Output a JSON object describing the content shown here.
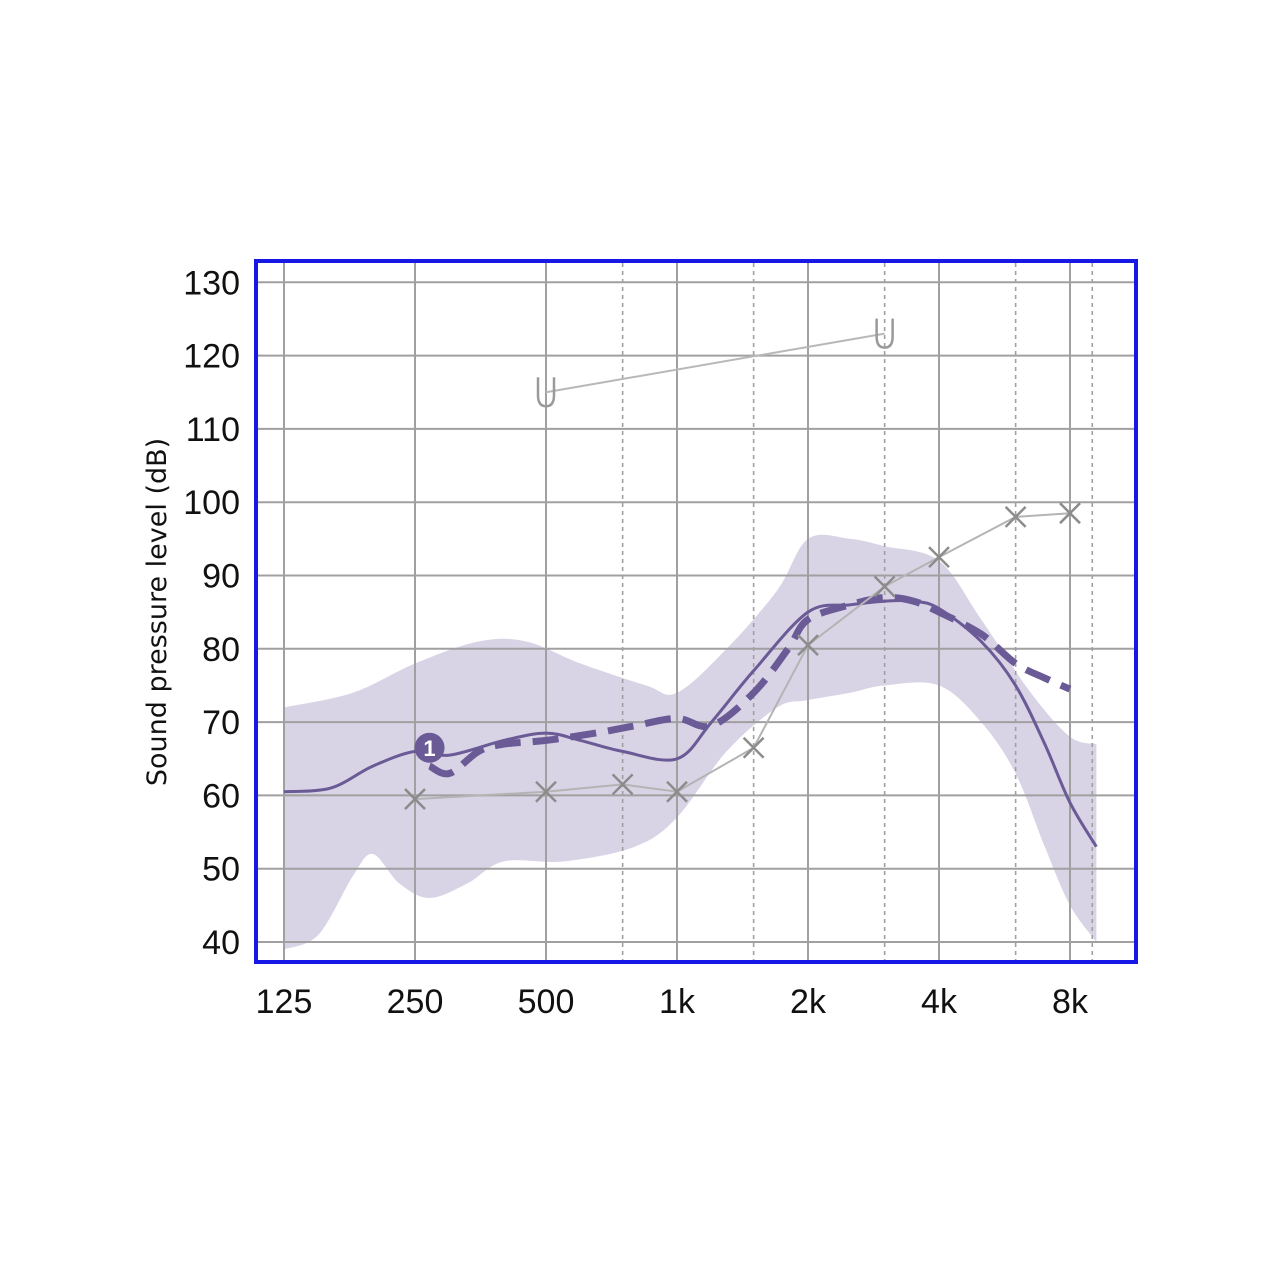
{
  "chart_data": {
    "type": "line",
    "title": "",
    "ylabel": "Sound pressure level (dB)",
    "xlabel": "",
    "x_scale": "log2",
    "xlim": [
      125,
      9600
    ],
    "ylim": [
      37,
      132
    ],
    "grid": true,
    "x_ticks": [
      {
        "value": 125,
        "label": "125"
      },
      {
        "value": 250,
        "label": "250"
      },
      {
        "value": 500,
        "label": "500"
      },
      {
        "value": 1000,
        "label": "1k"
      },
      {
        "value": 2000,
        "label": "2k"
      },
      {
        "value": 4000,
        "label": "4k"
      },
      {
        "value": 8000,
        "label": "8k"
      }
    ],
    "x_minor_ticks": [
      750,
      1500,
      3000,
      6000,
      9000
    ],
    "y_ticks": [
      40,
      50,
      60,
      70,
      80,
      90,
      100,
      110,
      120,
      130
    ],
    "colors": {
      "frame": "#1818e6",
      "grid": "#a0a0a0",
      "band": "#d9d3e6",
      "target": "#6a5a96",
      "measured": "#6a5a96",
      "thresholds": "#8c8c8c",
      "ucl": "#9a9a9a"
    },
    "band": {
      "upper": [
        [
          125,
          72
        ],
        [
          180,
          74
        ],
        [
          250,
          78
        ],
        [
          350,
          81
        ],
        [
          450,
          81
        ],
        [
          600,
          78
        ],
        [
          850,
          75
        ],
        [
          1000,
          74
        ],
        [
          1300,
          80
        ],
        [
          1700,
          88
        ],
        [
          2000,
          95
        ],
        [
          2500,
          95
        ],
        [
          3000,
          94
        ],
        [
          4000,
          92
        ],
        [
          5000,
          84
        ],
        [
          6500,
          74
        ],
        [
          8000,
          68
        ],
        [
          9200,
          67
        ]
      ],
      "lower": [
        [
          125,
          39
        ],
        [
          150,
          41
        ],
        [
          180,
          49
        ],
        [
          200,
          52
        ],
        [
          230,
          48
        ],
        [
          270,
          46
        ],
        [
          330,
          48
        ],
        [
          400,
          51
        ],
        [
          550,
          51
        ],
        [
          800,
          53
        ],
        [
          1000,
          57
        ],
        [
          1300,
          66
        ],
        [
          1700,
          72
        ],
        [
          2000,
          73
        ],
        [
          2500,
          74
        ],
        [
          3000,
          75
        ],
        [
          4000,
          75
        ],
        [
          5000,
          70
        ],
        [
          6000,
          63
        ],
        [
          7000,
          53
        ],
        [
          8000,
          45
        ],
        [
          9200,
          40
        ]
      ]
    },
    "series": [
      {
        "role": "target",
        "style": "solid",
        "points": [
          [
            125,
            60.5
          ],
          [
            160,
            61
          ],
          [
            200,
            64
          ],
          [
            250,
            66
          ],
          [
            300,
            65.5
          ],
          [
            400,
            67.5
          ],
          [
            500,
            68.5
          ],
          [
            600,
            67.5
          ],
          [
            750,
            66
          ],
          [
            1000,
            65
          ],
          [
            1200,
            70
          ],
          [
            1500,
            77
          ],
          [
            2000,
            85
          ],
          [
            2500,
            86
          ],
          [
            3000,
            86.5
          ],
          [
            3500,
            86.5
          ],
          [
            4000,
            85.5
          ],
          [
            5000,
            81
          ],
          [
            6000,
            75
          ],
          [
            7000,
            67
          ],
          [
            8000,
            59
          ],
          [
            9200,
            53
          ]
        ]
      },
      {
        "role": "measured",
        "style": "dashed",
        "points": [
          [
            270,
            64
          ],
          [
            300,
            63
          ],
          [
            350,
            66
          ],
          [
            400,
            67
          ],
          [
            500,
            67.5
          ],
          [
            650,
            68.5
          ],
          [
            800,
            69.5
          ],
          [
            1000,
            70.5
          ],
          [
            1200,
            69.5
          ],
          [
            1500,
            74
          ],
          [
            1800,
            80
          ],
          [
            2000,
            84
          ],
          [
            2500,
            86
          ],
          [
            3000,
            87
          ],
          [
            3500,
            86.5
          ],
          [
            4000,
            85
          ],
          [
            5000,
            82
          ],
          [
            6000,
            78
          ],
          [
            7000,
            76
          ],
          [
            8000,
            74.5
          ]
        ]
      },
      {
        "role": "thresholds",
        "marker": "X",
        "points": [
          [
            250,
            59.5
          ],
          [
            500,
            60.5
          ],
          [
            750,
            61.5
          ],
          [
            1000,
            60.5
          ],
          [
            1500,
            66.5
          ],
          [
            2000,
            80.5
          ],
          [
            3000,
            88.5
          ],
          [
            4000,
            92.5
          ],
          [
            6000,
            98
          ],
          [
            8000,
            98.5
          ]
        ]
      },
      {
        "role": "ucl",
        "marker": "U",
        "points": [
          [
            500,
            115
          ],
          [
            3000,
            123
          ]
        ]
      }
    ],
    "annotations": [
      {
        "text": "1",
        "x": 270,
        "y": 66.5
      }
    ]
  }
}
